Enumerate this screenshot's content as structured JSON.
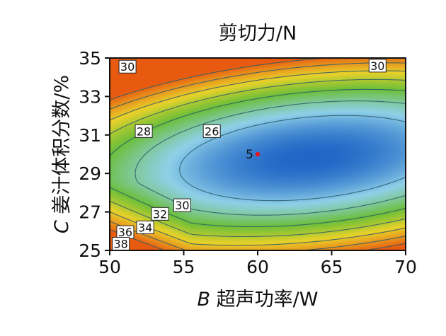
{
  "chart_data": {
    "type": "heatmap",
    "subtype": "contour",
    "title": "剪切力/N",
    "xlabel": {
      "var": "B",
      "text": " 超声功率/W"
    },
    "ylabel": {
      "var": "C",
      "text": " 姜汁体积分数/%"
    },
    "xlim": [
      50,
      70
    ],
    "ylim": [
      25,
      35
    ],
    "x_ticks": [
      "50",
      "55",
      "60",
      "65",
      "70"
    ],
    "y_ticks": [
      "25",
      "27",
      "29",
      "31",
      "33",
      "35"
    ],
    "colors": {
      "low": "#1f66c6",
      "mid": "#8fd0e8",
      "high_green": "#6cbf3a",
      "yellow": "#e8d22a",
      "max": "#e85a10",
      "point": "#e8141e"
    },
    "contour_labels": [
      {
        "text": "30",
        "x": 51.2,
        "y": 34.55
      },
      {
        "text": "30",
        "x": 68.1,
        "y": 34.6
      },
      {
        "text": "28",
        "x": 52.3,
        "y": 31.2
      },
      {
        "text": "26",
        "x": 56.9,
        "y": 31.2
      },
      {
        "text": "30",
        "x": 54.9,
        "y": 27.35
      },
      {
        "text": "32",
        "x": 53.4,
        "y": 26.9
      },
      {
        "text": "34",
        "x": 52.4,
        "y": 26.2
      },
      {
        "text": "36",
        "x": 51.05,
        "y": 25.95
      },
      {
        "text": "38",
        "x": 50.75,
        "y": 25.35
      }
    ],
    "design_point": {
      "label": "5",
      "x": 60.0,
      "y": 30.0
    }
  }
}
